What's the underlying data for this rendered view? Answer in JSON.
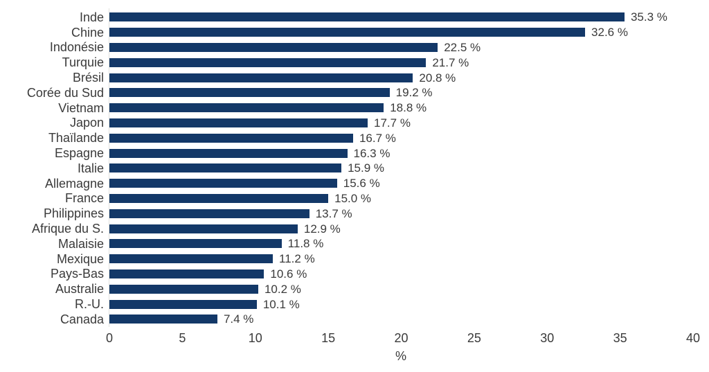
{
  "chart_data": {
    "type": "bar",
    "orientation": "horizontal",
    "title": "",
    "xlabel": "%",
    "ylabel": "",
    "xlim": [
      0,
      40
    ],
    "xticks": [
      "0",
      "5",
      "10",
      "15",
      "20",
      "25",
      "30",
      "35",
      "40"
    ],
    "grid": false,
    "bar_color": "#133868",
    "text_color": "#3a3a3a",
    "axis_line_color": "#e2e2de",
    "categories": [
      "Inde",
      "Chine",
      "Indonésie",
      "Turquie",
      "Brésil",
      "Corée du Sud",
      "Vietnam",
      "Japon",
      "Thaïlande",
      "Espagne",
      "Italie",
      "Allemagne",
      "France",
      "Philippines",
      "Afrique du S.",
      "Malaisie",
      "Mexique",
      "Pays-Bas",
      "Australie",
      "R.-U.",
      "Canada"
    ],
    "values": [
      35.3,
      32.6,
      22.5,
      21.7,
      20.8,
      19.2,
      18.8,
      17.7,
      16.7,
      16.3,
      15.9,
      15.6,
      15.0,
      13.7,
      12.9,
      11.8,
      11.2,
      10.6,
      10.2,
      10.1,
      7.4
    ],
    "value_labels": [
      "35.3 %",
      "32.6 %",
      "22.5 %",
      "21.7 %",
      "20.8 %",
      "19.2 %",
      "18.8 %",
      "17.7 %",
      "16.7 %",
      "16.3 %",
      "15.9 %",
      "15.6 %",
      "15.0 %",
      "13.7 %",
      "12.9 %",
      "11.8 %",
      "11.2 %",
      "10.6 %",
      "10.2 %",
      "10.1 %",
      "7.4 %"
    ]
  }
}
